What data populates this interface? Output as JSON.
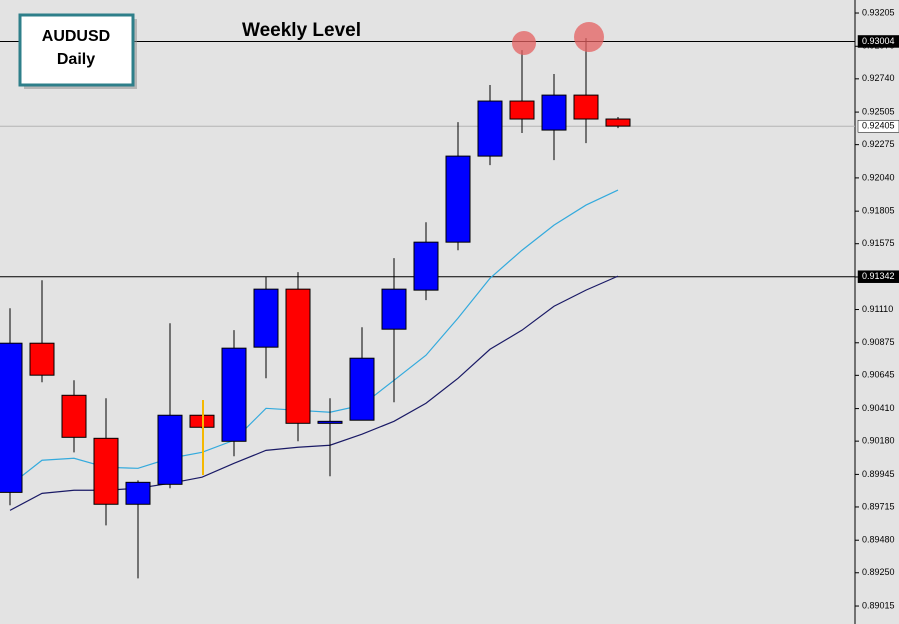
{
  "chart_data": {
    "type": "candlestick",
    "title": "AUDUSD",
    "subtitle": "Daily",
    "annotation": "Weekly Level",
    "categories": [
      null,
      null,
      null,
      null,
      null,
      null,
      null,
      null,
      null,
      null,
      null,
      null,
      null,
      null,
      null,
      null,
      null,
      null,
      null,
      null
    ],
    "open": [
      0.89818,
      0.90872,
      0.90504,
      0.902,
      0.89734,
      0.89875,
      0.90363,
      0.90179,
      0.90844,
      0.91254,
      0.90306,
      0.90328,
      0.90971,
      0.91247,
      0.91586,
      0.92194,
      0.92583,
      0.92378,
      0.92625,
      0.92456
    ],
    "high": [
      0.91119,
      0.91317,
      0.9061,
      0.90483,
      0.89903,
      0.91013,
      0.90363,
      0.90964,
      0.91339,
      0.91374,
      0.90483,
      0.90985,
      0.91473,
      0.91727,
      0.92434,
      0.92696,
      0.92943,
      0.92774,
      0.93028,
      0.9247
    ],
    "low": [
      0.89727,
      0.90596,
      0.90101,
      0.89585,
      0.8921,
      0.89847,
      0.90271,
      0.90073,
      0.90624,
      0.90179,
      0.89932,
      0.90328,
      0.90455,
      0.91176,
      0.91529,
      0.9213,
      0.92357,
      0.92166,
      0.92286,
      0.92392
    ],
    "close": [
      0.90872,
      0.90646,
      0.90207,
      0.89734,
      0.89889,
      0.90363,
      0.90278,
      0.90837,
      0.91254,
      0.90306,
      0.9032,
      0.90766,
      0.91254,
      0.91586,
      0.92194,
      0.92583,
      0.92456,
      0.92625,
      0.92456,
      0.92406
    ],
    "up_color": "#0000ff",
    "down_color": "#ff0000",
    "overlays": [
      {
        "color": "#33aadd",
        "values": [
          0.89868,
          0.90045,
          0.90059,
          0.89995,
          0.89988,
          0.90059,
          0.90101,
          0.90186,
          0.90412,
          0.90398,
          0.90384,
          0.90434,
          0.9061,
          0.90787,
          0.91049,
          0.91331,
          0.91529,
          0.91706,
          0.91848,
          0.91954
        ]
      },
      {
        "color": "#1a1a66",
        "values": [
          0.89691,
          0.89811,
          0.89833,
          0.89833,
          0.89847,
          0.89882,
          0.89925,
          0.90023,
          0.90115,
          0.90137,
          0.90151,
          0.90229,
          0.9032,
          0.90448,
          0.90624,
          0.90829,
          0.90964,
          0.91133,
          0.91247,
          0.91346
        ]
      }
    ],
    "levels": [
      {
        "value": 0.93004,
        "color": "#000000"
      },
      {
        "value": 0.92405,
        "color": "#b4b4b4"
      },
      {
        "value": 0.91342,
        "color": "#000000"
      }
    ],
    "ylim": [
      0.88888,
      0.93297
    ],
    "yticks": [
      0.93205,
      {
        "value": 0.9297,
        "label": "0.92970"
      },
      {
        "value": 0.9274,
        "label": "0.92740"
      },
      0.92505,
      0.92275,
      {
        "value": 0.9204,
        "label": "0.92040"
      },
      0.91805,
      0.91575,
      {
        "value": 0.9134,
        "label": "0.91340"
      },
      {
        "value": 0.9111,
        "label": "0.91110"
      },
      0.90875,
      0.90645,
      {
        "value": 0.9041,
        "label": "0.90410"
      },
      {
        "value": 0.9018,
        "label": "0.90180"
      },
      0.89945,
      0.89715,
      {
        "value": 0.8948,
        "label": "0.89480"
      },
      {
        "value": 0.8925,
        "label": "0.89250"
      },
      0.89015
    ]
  }
}
